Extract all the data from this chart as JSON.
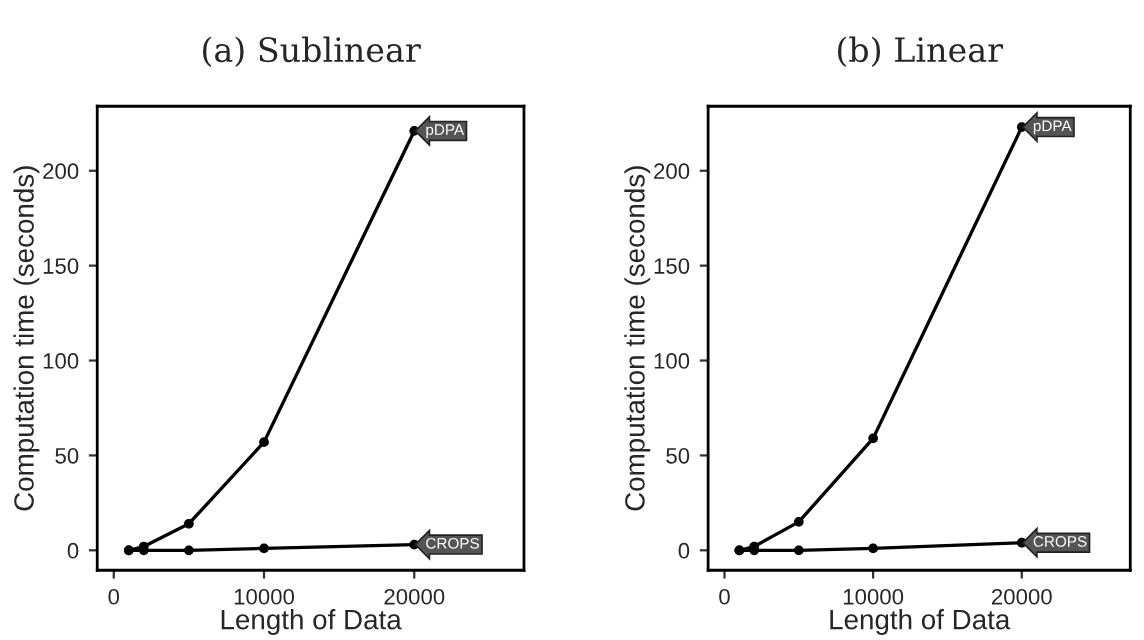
{
  "chart_data": [
    {
      "type": "line",
      "title": "(a) Sublinear",
      "xlabel": "Length of Data",
      "ylabel": "Computation time (seconds)",
      "x": [
        1000,
        2000,
        5000,
        10000,
        20000
      ],
      "series": [
        {
          "name": "pDPA",
          "color": "#000000",
          "values": [
            0,
            2,
            14,
            57,
            221
          ]
        },
        {
          "name": "CROPS",
          "color": "#000000",
          "values": [
            0,
            0,
            0,
            1,
            3
          ]
        }
      ],
      "xlim": [
        -1100,
        27300
      ],
      "ylim": [
        -10.5,
        234
      ],
      "xticks": [
        0,
        10000,
        20000
      ],
      "yticks": [
        0,
        50,
        100,
        150,
        200
      ],
      "marker": "circle",
      "grid": false,
      "legend": false
    },
    {
      "type": "line",
      "title": "(b) Linear",
      "xlabel": "Length of Data",
      "ylabel": "Computation time (seconds)",
      "x": [
        1000,
        2000,
        5000,
        10000,
        20000
      ],
      "series": [
        {
          "name": "pDPA",
          "color": "#000000",
          "values": [
            0,
            2,
            15,
            59,
            223
          ]
        },
        {
          "name": "CROPS",
          "color": "#000000",
          "values": [
            0,
            0,
            0,
            1,
            4
          ]
        }
      ],
      "xlim": [
        -1100,
        27300
      ],
      "ylim": [
        -10.5,
        234
      ],
      "xticks": [
        0,
        10000,
        20000
      ],
      "yticks": [
        0,
        50,
        100,
        150,
        200
      ],
      "marker": "circle",
      "grid": false,
      "legend": false
    }
  ]
}
